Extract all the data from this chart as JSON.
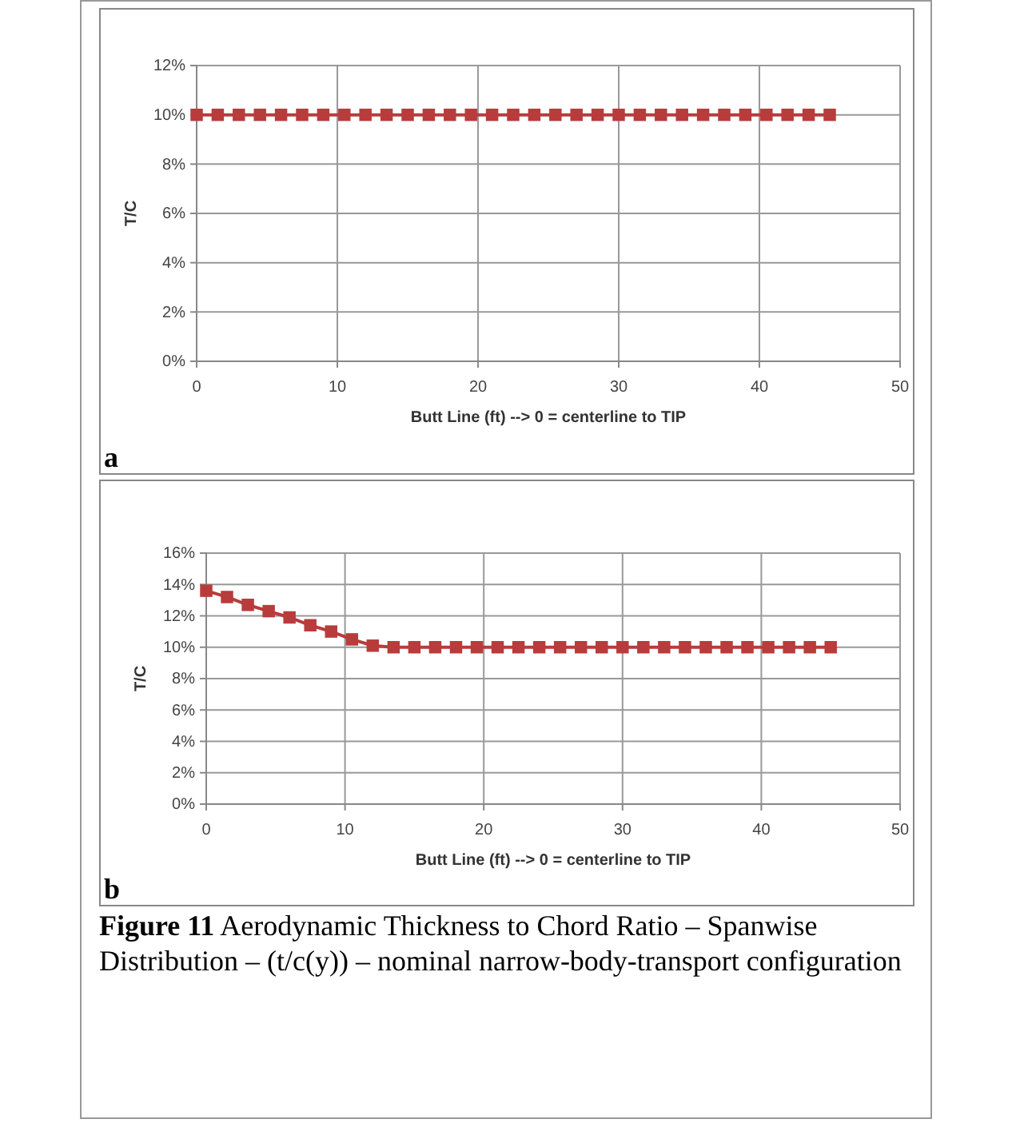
{
  "chart_data": [
    {
      "type": "line",
      "xlabel": "Butt Line (ft) --> 0 = centerline to TIP",
      "ylabel": "T/C",
      "annotations": [
        "a"
      ],
      "x": [
        0,
        1.5,
        3,
        4.5,
        6,
        7.5,
        9,
        10.5,
        12,
        13.5,
        15,
        16.5,
        18,
        19.5,
        21,
        22.5,
        24,
        25.5,
        27,
        28.5,
        30,
        31.5,
        33,
        34.5,
        36,
        37.5,
        39,
        40.5,
        42,
        43.5,
        45
      ],
      "series": [
        {
          "color": "#b83c3c",
          "values": [
            10,
            10,
            10,
            10,
            10,
            10,
            10,
            10,
            10,
            10,
            10,
            10,
            10,
            10,
            10,
            10,
            10,
            10,
            10,
            10,
            10,
            10,
            10,
            10,
            10,
            10,
            10,
            10,
            10,
            10,
            10
          ]
        }
      ],
      "xlim": [
        0,
        50
      ],
      "xticks": [
        0,
        10,
        20,
        30,
        40,
        50
      ],
      "ylim": [
        0,
        12
      ],
      "yticks": [
        {
          "value": 0,
          "label": "0%"
        },
        {
          "value": 2,
          "label": "2%"
        },
        {
          "value": 4,
          "label": "4%"
        },
        {
          "value": 6,
          "label": "6%"
        },
        {
          "value": 8,
          "label": "8%"
        },
        {
          "value": 10,
          "label": "10%"
        },
        {
          "value": 12,
          "label": "12%"
        }
      ],
      "grid": true,
      "marker": "square",
      "line_style": "solid"
    },
    {
      "type": "line",
      "xlabel": "Butt Line (ft) --> 0 = centerline to TIP",
      "ylabel": "T/C",
      "annotations": [
        "b",
        "Figure 11",
        "Aerodynamic Thickness to Chord Ratio – Spanwise Distribution – (t/c(y)) – nominal narrow-body-transport configuration"
      ],
      "x": [
        0,
        1.5,
        3,
        4.5,
        6,
        7.5,
        9,
        10.5,
        12,
        13.5,
        15,
        16.5,
        18,
        19.5,
        21,
        22.5,
        24,
        25.5,
        27,
        28.5,
        30,
        31.5,
        33,
        34.5,
        36,
        37.5,
        39,
        40.5,
        42,
        43.5,
        45
      ],
      "series": [
        {
          "color": "#b83c3c",
          "values": [
            13.6,
            13.2,
            12.7,
            12.3,
            11.9,
            11.4,
            11.0,
            10.5,
            10.1,
            10,
            10,
            10,
            10,
            10,
            10,
            10,
            10,
            10,
            10,
            10,
            10,
            10,
            10,
            10,
            10,
            10,
            10,
            10,
            10,
            10,
            10
          ]
        }
      ],
      "xlim": [
        0,
        50
      ],
      "xticks": [
        0,
        10,
        20,
        30,
        40,
        50
      ],
      "ylim": [
        0,
        16
      ],
      "yticks": [
        {
          "value": 0,
          "label": "0%"
        },
        {
          "value": 2,
          "label": "2%"
        },
        {
          "value": 4,
          "label": "4%"
        },
        {
          "value": 6,
          "label": "6%"
        },
        {
          "value": 8,
          "label": "8%"
        },
        {
          "value": 10,
          "label": "10%"
        },
        {
          "value": 12,
          "label": "12%"
        },
        {
          "value": 14,
          "label": "14%"
        },
        {
          "value": 16,
          "label": "16%"
        }
      ],
      "grid": true,
      "marker": "square",
      "line_style": "solid"
    }
  ]
}
